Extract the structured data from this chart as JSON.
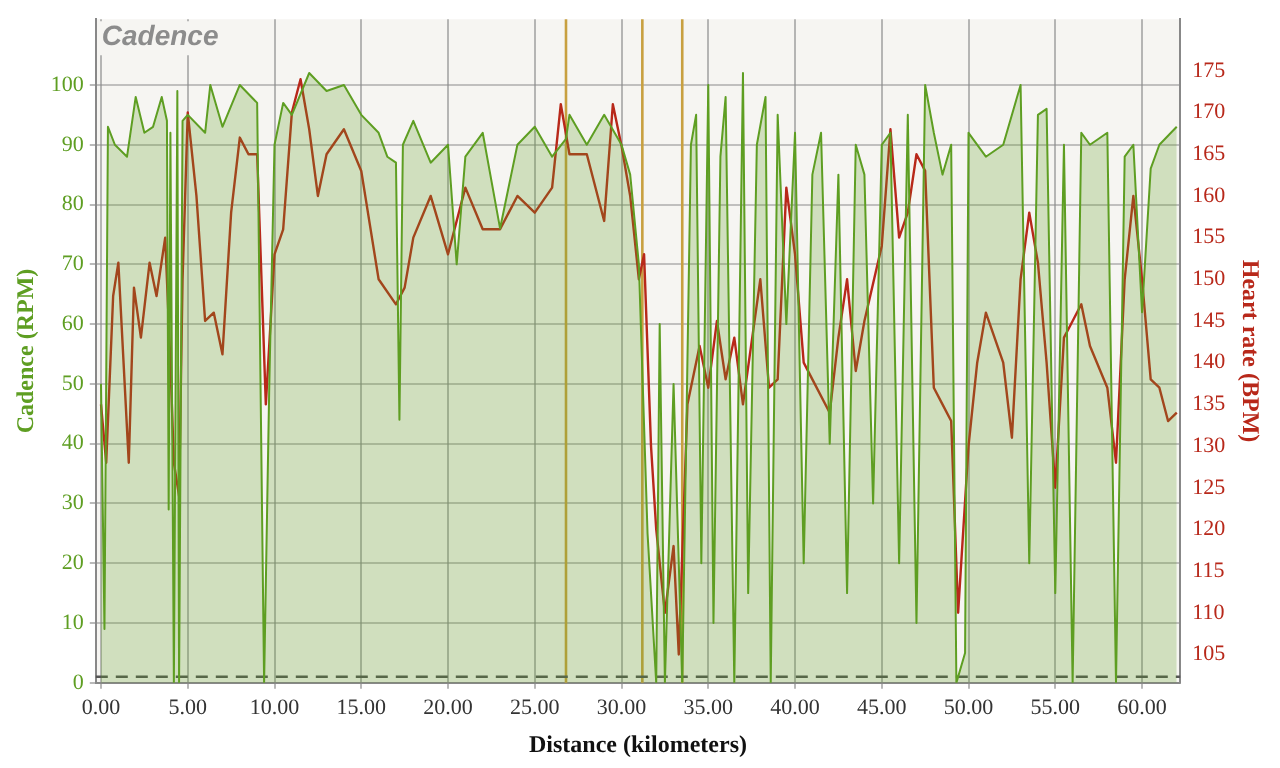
{
  "chart_data": {
    "type": "line",
    "title": "Cadence",
    "xlabel": "Distance (kilometers)",
    "ylabel": "Cadence (RPM)",
    "y2label": "Heart rate (BPM)",
    "xlim": [
      -0.3,
      62.2
    ],
    "xticks": [
      {
        "value": 0,
        "label": "0.00"
      },
      {
        "value": 5,
        "label": "5.00"
      },
      {
        "value": 10,
        "label": "10.00"
      },
      {
        "value": 15,
        "label": "15.00"
      },
      {
        "value": 20,
        "label": "20.00"
      },
      {
        "value": 25,
        "label": "25.00"
      },
      {
        "value": 30,
        "label": "30.00"
      },
      {
        "value": 35,
        "label": "35.00"
      },
      {
        "value": 40,
        "label": "40.00"
      },
      {
        "value": 45,
        "label": "45.00"
      },
      {
        "value": 50,
        "label": "50.00"
      },
      {
        "value": 55,
        "label": "55.00"
      },
      {
        "value": 60,
        "label": "60.00"
      }
    ],
    "ylim": [
      0,
      111
    ],
    "yticks": [
      0,
      10,
      20,
      30,
      40,
      50,
      60,
      70,
      80,
      90,
      100
    ],
    "y2lim": [
      101.6,
      181.2
    ],
    "y2ticks": [
      105,
      110,
      115,
      120,
      125,
      130,
      135,
      140,
      145,
      150,
      155,
      160,
      165,
      170,
      175
    ],
    "grid": true,
    "legend": false,
    "marker": "none",
    "ref_lines": [
      {
        "axis": "x",
        "value": 26.8,
        "color": "#c8a040"
      },
      {
        "axis": "x",
        "value": 31.2,
        "color": "#c8a040"
      },
      {
        "axis": "x",
        "value": 33.5,
        "color": "#c8a040"
      },
      {
        "axis": "y",
        "value": 1,
        "color": "#555555",
        "line_style": "dashed"
      }
    ],
    "series": [
      {
        "type": "area",
        "color": "#5e9e22",
        "x": [
          0,
          0.2,
          0.4,
          0.8,
          1.5,
          2,
          2.5,
          3,
          3.5,
          3.8,
          3.9,
          4,
          4.2,
          4.4,
          4.5,
          4.7,
          5,
          6,
          6.3,
          7,
          8,
          9,
          9.4,
          9.7,
          10,
          10.5,
          11,
          12,
          13,
          14,
          15,
          16,
          16.5,
          17,
          17.2,
          17.4,
          18,
          19,
          20,
          20.5,
          21,
          22,
          23,
          24,
          25,
          26,
          26.8,
          27,
          28,
          29,
          30,
          30.5,
          31,
          31.5,
          32,
          32.2,
          32.5,
          33,
          33.5,
          34,
          34.3,
          34.6,
          35,
          35.3,
          35.7,
          36,
          36.5,
          37,
          37.3,
          37.8,
          38.3,
          38.6,
          39,
          39.5,
          40,
          40.5,
          41,
          41.5,
          42,
          42.5,
          43,
          43.5,
          44,
          44.5,
          45,
          45.5,
          46,
          46.5,
          47,
          47.5,
          48,
          48.5,
          49,
          49.3,
          49.8,
          50,
          51,
          52,
          53,
          53.5,
          54,
          54.5,
          55,
          55.5,
          56,
          56.5,
          57,
          58,
          58.5,
          59,
          59.5,
          60,
          60.5,
          61,
          62
        ],
        "values": [
          50,
          9,
          93,
          90,
          88,
          98,
          92,
          93,
          98,
          94,
          29,
          92,
          0,
          99,
          0,
          94,
          95,
          92,
          100,
          93,
          100,
          97,
          0,
          50,
          90,
          97,
          95,
          102,
          99,
          100,
          95,
          92,
          88,
          87,
          44,
          90,
          94,
          87,
          90,
          70,
          88,
          92,
          76,
          90,
          93,
          88,
          91,
          95,
          90,
          95,
          90,
          85,
          70,
          25,
          0,
          60,
          0,
          50,
          0,
          90,
          95,
          20,
          100,
          10,
          88,
          98,
          0,
          102,
          15,
          90,
          98,
          0,
          95,
          60,
          92,
          20,
          85,
          92,
          40,
          85,
          15,
          90,
          85,
          30,
          90,
          92,
          20,
          95,
          10,
          100,
          92,
          85,
          90,
          0,
          5,
          92,
          88,
          90,
          100,
          20,
          95,
          96,
          15,
          90,
          0,
          92,
          90,
          92,
          0,
          88,
          90,
          62,
          86,
          90,
          93
        ]
      },
      {
        "axis": "y2",
        "color": "#b8281a",
        "x": [
          0,
          0.3,
          0.7,
          1,
          1.3,
          1.6,
          1.9,
          2.3,
          2.8,
          3.2,
          3.7,
          4,
          4.2,
          4.5,
          4.7,
          5,
          5.5,
          6,
          6.5,
          7,
          7.5,
          8,
          8.5,
          9,
          9.5,
          10,
          10.5,
          11,
          11.5,
          12,
          12.5,
          13,
          14,
          15,
          16,
          17,
          17.5,
          18,
          19,
          20,
          21,
          22,
          23,
          24,
          25,
          26,
          26.5,
          27,
          28,
          29,
          29.5,
          30,
          30.5,
          31,
          31.3,
          31.7,
          32,
          32.5,
          33,
          33.3,
          33.8,
          34.5,
          35,
          35.5,
          36,
          36.5,
          37,
          38,
          38.5,
          39,
          39.5,
          40,
          40.5,
          41,
          42,
          42.5,
          43,
          43.5,
          44,
          45,
          45.5,
          46,
          46.5,
          47,
          47.5,
          48,
          48.5,
          49,
          49.4,
          49.7,
          50,
          50.5,
          51,
          51.5,
          52,
          52.5,
          53,
          53.5,
          54,
          54.5,
          55,
          55.5,
          56,
          56.5,
          57,
          58,
          58.5,
          59,
          59.5,
          60,
          60.5,
          61,
          61.5,
          62
        ],
        "values": [
          135,
          128,
          148,
          152,
          140,
          128,
          149,
          143,
          152,
          148,
          155,
          140,
          128,
          124,
          150,
          170,
          160,
          145,
          146,
          141,
          158,
          167,
          165,
          165,
          135,
          153,
          156,
          170,
          174,
          168,
          160,
          165,
          168,
          163,
          150,
          147,
          149,
          155,
          160,
          153,
          161,
          156,
          156,
          160,
          158,
          161,
          171,
          165,
          165,
          157,
          171,
          166,
          160,
          150,
          153,
          130,
          120,
          110,
          118,
          105,
          135,
          142,
          137,
          145,
          138,
          143,
          135,
          150,
          137,
          138,
          161,
          153,
          140,
          138,
          134,
          143,
          150,
          139,
          145,
          154,
          168,
          155,
          158,
          165,
          163,
          137,
          135,
          133,
          110,
          120,
          130,
          140,
          146,
          143,
          140,
          131,
          150,
          158,
          152,
          140,
          125,
          143,
          145,
          147,
          142,
          137,
          128,
          150,
          160,
          150,
          138,
          137,
          133,
          134
        ]
      }
    ]
  }
}
